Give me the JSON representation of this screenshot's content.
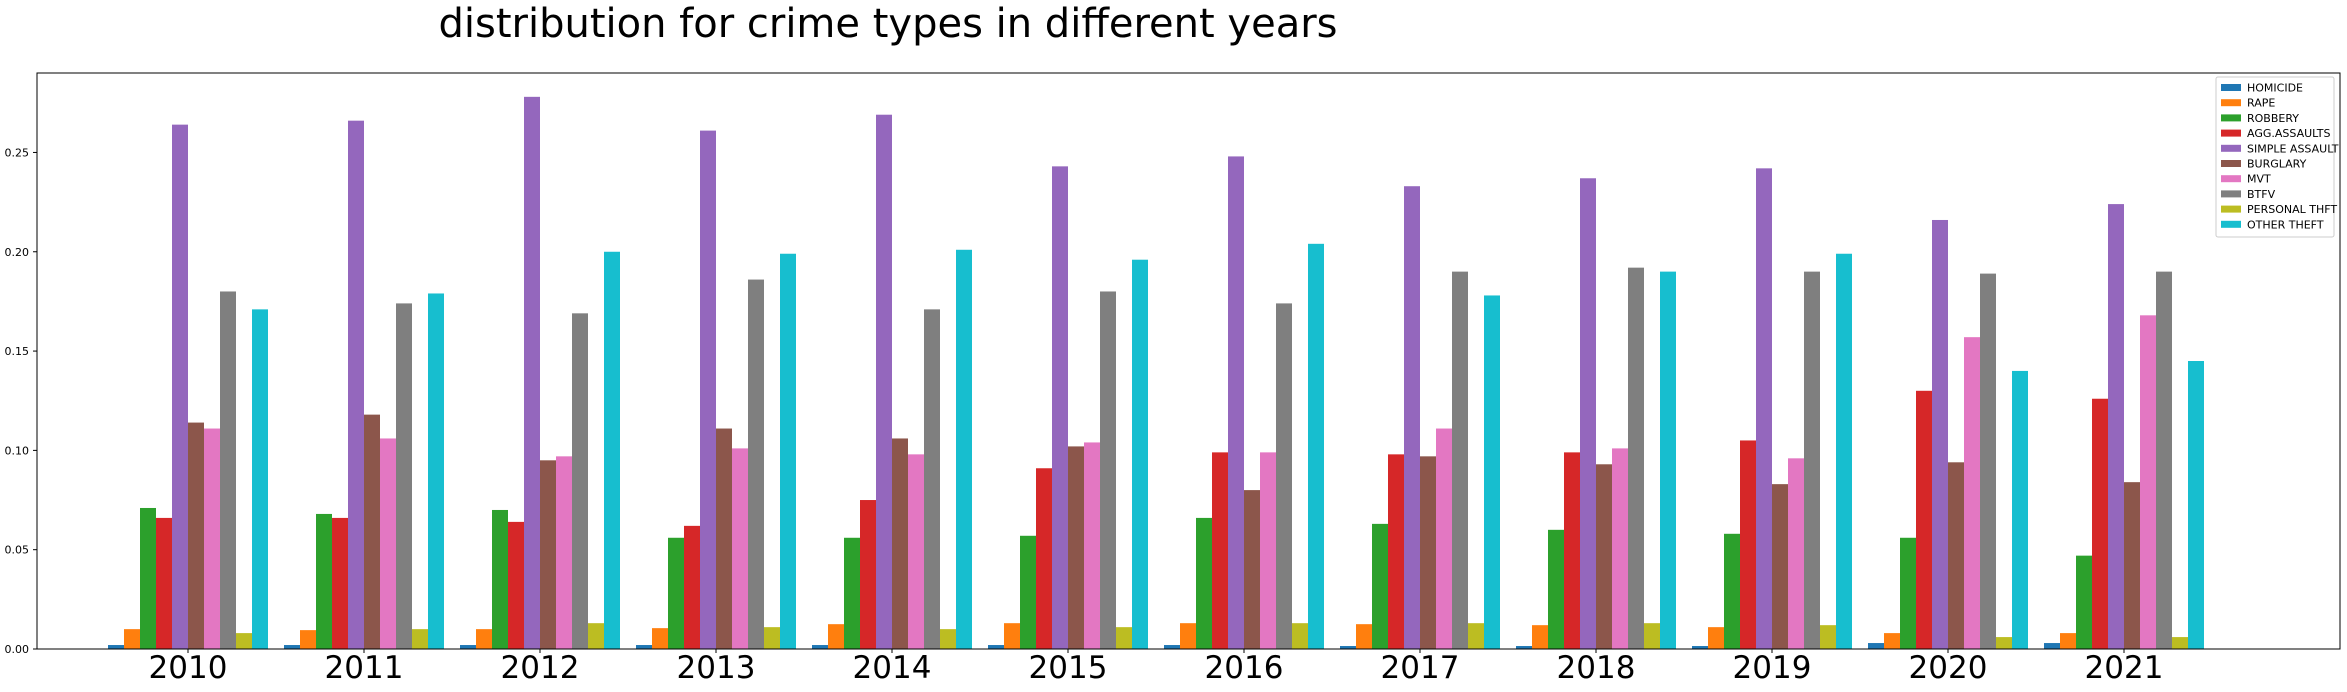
{
  "chart_data": {
    "type": "bar",
    "title": "distribution for crime types in different years",
    "xlabel": "",
    "ylabel": "",
    "categories": [
      "2010",
      "2011",
      "2012",
      "2013",
      "2014",
      "2015",
      "2016",
      "2017",
      "2018",
      "2019",
      "2020",
      "2021"
    ],
    "ylim": [
      0,
      0.29
    ],
    "yticks": [
      "0.00",
      "0.05",
      "0.10",
      "0.15",
      "0.20",
      "0.25"
    ],
    "grid": false,
    "legend_position": "top-right",
    "series": [
      {
        "name": "HOMICIDE",
        "color": "#1f77b4",
        "values": [
          0.002,
          0.002,
          0.002,
          0.002,
          0.002,
          0.002,
          0.002,
          0.0015,
          0.0015,
          0.0015,
          0.003,
          0.003
        ]
      },
      {
        "name": "RAPE",
        "color": "#ff7f0e",
        "values": [
          0.01,
          0.0095,
          0.01,
          0.0105,
          0.0125,
          0.013,
          0.013,
          0.0125,
          0.012,
          0.011,
          0.008,
          0.008
        ]
      },
      {
        "name": "ROBBERY",
        "color": "#2ca02c",
        "values": [
          0.071,
          0.068,
          0.07,
          0.056,
          0.056,
          0.057,
          0.066,
          0.063,
          0.06,
          0.058,
          0.056,
          0.047
        ]
      },
      {
        "name": "AGG.ASSAULTS",
        "color": "#d62728",
        "values": [
          0.066,
          0.066,
          0.064,
          0.062,
          0.075,
          0.091,
          0.099,
          0.098,
          0.099,
          0.105,
          0.13,
          0.126
        ]
      },
      {
        "name": "SIMPLE ASSAULT",
        "color": "#9467bd",
        "values": [
          0.264,
          0.266,
          0.278,
          0.261,
          0.269,
          0.243,
          0.248,
          0.233,
          0.237,
          0.242,
          0.216,
          0.224
        ]
      },
      {
        "name": "BURGLARY",
        "color": "#8c564b",
        "values": [
          0.114,
          0.118,
          0.095,
          0.111,
          0.106,
          0.102,
          0.08,
          0.097,
          0.093,
          0.083,
          0.094,
          0.084
        ]
      },
      {
        "name": "MVT",
        "color": "#e377c2",
        "values": [
          0.111,
          0.106,
          0.097,
          0.101,
          0.098,
          0.104,
          0.099,
          0.111,
          0.101,
          0.096,
          0.157,
          0.168
        ]
      },
      {
        "name": "BTFV",
        "color": "#7f7f7f",
        "values": [
          0.18,
          0.174,
          0.169,
          0.186,
          0.171,
          0.18,
          0.174,
          0.19,
          0.192,
          0.19,
          0.189,
          0.19
        ]
      },
      {
        "name": "PERSONAL THFT",
        "color": "#bcbd22",
        "values": [
          0.008,
          0.01,
          0.013,
          0.011,
          0.01,
          0.011,
          0.013,
          0.013,
          0.013,
          0.012,
          0.006,
          0.006
        ]
      },
      {
        "name": "OTHER THEFT",
        "color": "#17becf",
        "values": [
          0.171,
          0.179,
          0.2,
          0.199,
          0.201,
          0.196,
          0.204,
          0.178,
          0.19,
          0.199,
          0.14,
          0.145
        ]
      }
    ]
  }
}
